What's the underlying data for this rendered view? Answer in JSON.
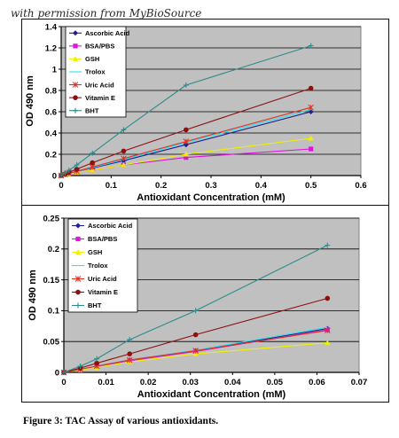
{
  "watermark": "with permission from MyBioSource",
  "caption": "Figure 3: TAC Assay of various antioxidants.",
  "chart_data": [
    {
      "type": "line",
      "title": "",
      "xlabel": "Antioxidant Concentration (mM)",
      "ylabel": "OD 490 nm",
      "xlim": [
        0,
        0.6
      ],
      "ylim": [
        0,
        1.4
      ],
      "xticks": [
        "0",
        "0.1",
        "0.2",
        "0.3",
        "0.4",
        "0.5",
        "0.6"
      ],
      "yticks": [
        "0",
        "0.2",
        "0.4",
        "0.6",
        "0.8",
        "1",
        "1.2",
        "1.4"
      ],
      "grid": "horizontal",
      "plot_background": "#c0c0c0",
      "legend": "inside-top-left",
      "series": [
        {
          "name": "Ascorbic Acid",
          "color": "#1f1f8f",
          "marker": "diamond",
          "x": [
            0,
            0.0078,
            0.0156,
            0.03125,
            0.0625,
            0.125,
            0.25,
            0.5
          ],
          "y": [
            0,
            0.01,
            0.02,
            0.04,
            0.07,
            0.14,
            0.29,
            0.6
          ]
        },
        {
          "name": "BSA/PBS",
          "color": "#e010e0",
          "marker": "square",
          "x": [
            0,
            0.0078,
            0.0156,
            0.03125,
            0.0625,
            0.125,
            0.25,
            0.5
          ],
          "y": [
            0,
            0.01,
            0.015,
            0.03,
            0.05,
            0.1,
            0.17,
            0.25
          ]
        },
        {
          "name": "GSH",
          "color": "#f0f000",
          "marker": "triangle",
          "x": [
            0,
            0.0078,
            0.0156,
            0.03125,
            0.0625,
            0.125,
            0.25,
            0.5
          ],
          "y": [
            0,
            0.01,
            0.015,
            0.03,
            0.05,
            0.1,
            0.2,
            0.35
          ]
        },
        {
          "name": "Trolox",
          "color": "#30e0f0",
          "marker": "none",
          "x": [
            0,
            0.0078,
            0.0156,
            0.03125,
            0.0625,
            0.125,
            0.25,
            0.5
          ],
          "y": [
            0,
            0.01,
            0.02,
            0.04,
            0.075,
            0.15,
            0.31,
            0.62
          ]
        },
        {
          "name": "Uric Acid",
          "color": "#e03020",
          "marker": "star",
          "x": [
            0,
            0.0078,
            0.0156,
            0.03125,
            0.0625,
            0.125,
            0.25,
            0.5
          ],
          "y": [
            0,
            0.01,
            0.02,
            0.04,
            0.08,
            0.16,
            0.32,
            0.64
          ]
        },
        {
          "name": "Vitamin E",
          "color": "#8b1010",
          "marker": "circle",
          "x": [
            0,
            0.0078,
            0.0156,
            0.03125,
            0.0625,
            0.125,
            0.25,
            0.5
          ],
          "y": [
            0,
            0.015,
            0.03,
            0.06,
            0.12,
            0.23,
            0.43,
            0.82
          ]
        },
        {
          "name": "BHT",
          "color": "#2e8b8b",
          "marker": "plus",
          "x": [
            0,
            0.0078,
            0.0156,
            0.03125,
            0.0625,
            0.125,
            0.25,
            0.5
          ],
          "y": [
            0,
            0.025,
            0.05,
            0.1,
            0.21,
            0.43,
            0.85,
            1.22
          ]
        }
      ]
    },
    {
      "type": "line",
      "title": "",
      "xlabel": "Antioxidant Concentration (mM)",
      "ylabel": "OD 490 nm",
      "xlim": [
        0,
        0.07
      ],
      "ylim": [
        0,
        0.25
      ],
      "xticks": [
        "0",
        "0.01",
        "0.02",
        "0.03",
        "0.04",
        "0.05",
        "0.06",
        "0.07"
      ],
      "yticks": [
        "0",
        "0.05",
        "0.1",
        "0.15",
        "0.2",
        "0.25"
      ],
      "grid": "horizontal",
      "plot_background": "#c0c0c0",
      "legend": "inside-top-left",
      "series": [
        {
          "name": "Ascorbic Acid",
          "color": "#1f1f8f",
          "marker": "diamond",
          "x": [
            0,
            0.0039,
            0.0078,
            0.0156,
            0.03125,
            0.0625
          ],
          "y": [
            0,
            0.005,
            0.01,
            0.02,
            0.035,
            0.071
          ]
        },
        {
          "name": "BSA/PBS",
          "color": "#e010e0",
          "marker": "square",
          "x": [
            0,
            0.0039,
            0.0078,
            0.0156,
            0.03125,
            0.0625
          ],
          "y": [
            0,
            0.004,
            0.009,
            0.019,
            0.034,
            0.069
          ]
        },
        {
          "name": "GSH",
          "color": "#f0f000",
          "marker": "triangle",
          "x": [
            0,
            0.0039,
            0.0078,
            0.0156,
            0.03125,
            0.0625
          ],
          "y": [
            0,
            0.004,
            0.008,
            0.017,
            0.03,
            0.048
          ]
        },
        {
          "name": "Trolox",
          "color": "#30e0f0",
          "marker": "none",
          "x": [
            0,
            0.0039,
            0.0078,
            0.0156,
            0.03125,
            0.0625
          ],
          "y": [
            0,
            0.005,
            0.01,
            0.02,
            0.036,
            0.073
          ]
        },
        {
          "name": "Uric Acid",
          "color": "#e03020",
          "marker": "star",
          "x": [
            0,
            0.0039,
            0.0078,
            0.0156,
            0.03125,
            0.0625
          ],
          "y": [
            0,
            0.005,
            0.01,
            0.02,
            0.035,
            0.068
          ]
        },
        {
          "name": "Vitamin E",
          "color": "#8b1010",
          "marker": "circle",
          "x": [
            0,
            0.0039,
            0.0078,
            0.0156,
            0.03125,
            0.0625
          ],
          "y": [
            0,
            0.007,
            0.015,
            0.03,
            0.061,
            0.12
          ]
        },
        {
          "name": "BHT",
          "color": "#2e8b8b",
          "marker": "plus",
          "x": [
            0,
            0.0039,
            0.0078,
            0.0156,
            0.03125,
            0.0625
          ],
          "y": [
            0,
            0.01,
            0.022,
            0.053,
            0.1,
            0.206
          ]
        }
      ]
    }
  ]
}
